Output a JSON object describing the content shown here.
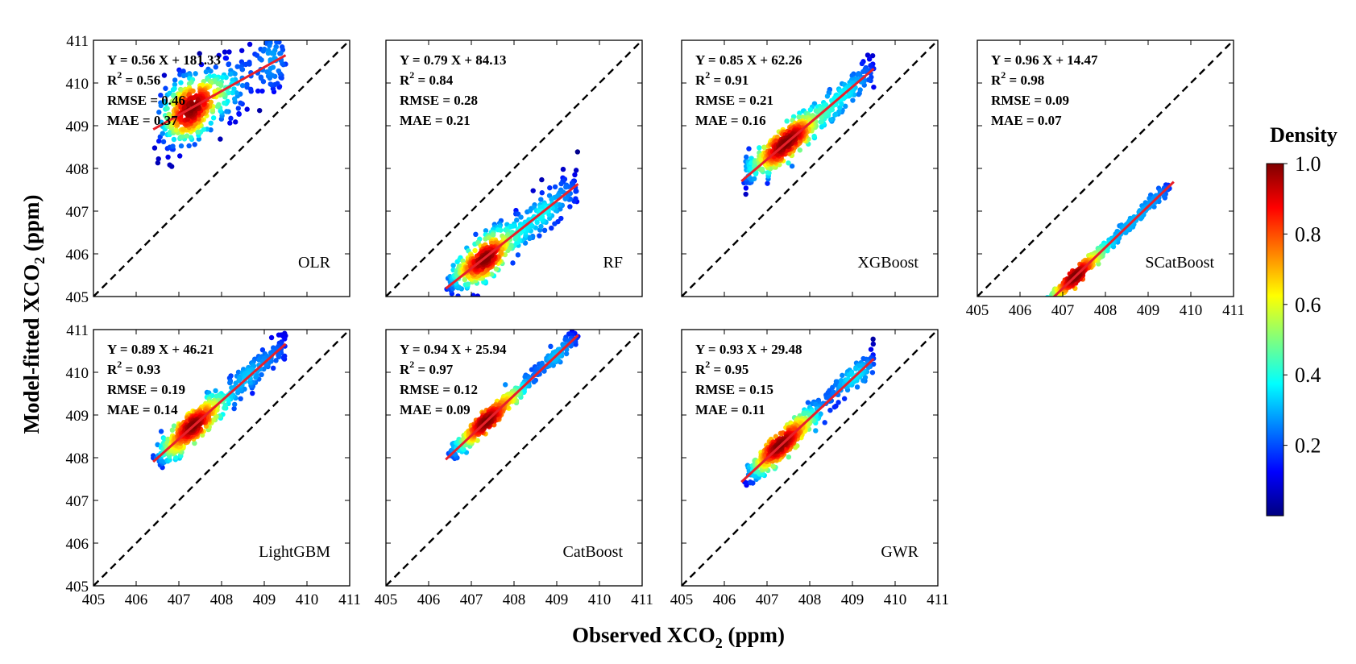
{
  "figure": {
    "xlabel": {
      "pre": "Observed XCO",
      "sub": "2",
      "post": " (ppm)"
    },
    "ylabel": {
      "pre": "Model-fitted XCO",
      "sub": "2",
      "post": " (ppm)"
    }
  },
  "colorbar": {
    "title": "Density",
    "ticks": [
      "1.0",
      "0.8",
      "0.6",
      "0.4",
      "0.2"
    ],
    "tick_values": [
      1.0,
      0.8,
      0.6,
      0.4,
      0.2
    ],
    "range": [
      0.0,
      1.0
    ],
    "colormap": [
      "#00007f",
      "#0000ff",
      "#007fff",
      "#00ffff",
      "#7fff7f",
      "#ffff00",
      "#ff7f00",
      "#ff0000",
      "#7f0000"
    ]
  },
  "chart_data": [
    {
      "type": "scatter",
      "model": "OLR",
      "equation": "Y = 0.56 X + 181.33",
      "r2_label": "R",
      "r2_sup": "2",
      "r2_value": " = 0.56",
      "rmse": "RMSE = 0.46",
      "mae": "MAE = 0.37",
      "slope": 0.56,
      "intercept": 181.33,
      "fit_x": [
        406.4,
        409.5
      ],
      "spread": 0.42,
      "xlim": [
        405,
        411
      ],
      "ylim": [
        405,
        411
      ],
      "one_to_one": true,
      "fit_color": "#e8202a",
      "x_ticks": [],
      "y_ticks": [
        "405",
        "406",
        "407",
        "408",
        "409",
        "410",
        "411"
      ]
    },
    {
      "type": "scatter",
      "model": "RF",
      "equation": "Y = 0.79 X + 84.13",
      "r2_label": "R",
      "r2_sup": "2",
      "r2_value": " = 0.84",
      "rmse": "RMSE = 0.28",
      "mae": "MAE = 0.21",
      "slope": 0.79,
      "intercept": 84.13,
      "fit_x": [
        406.4,
        409.5
      ],
      "spread": 0.26,
      "xlim": [
        405,
        411
      ],
      "ylim": [
        405,
        411
      ],
      "one_to_one": true,
      "fit_color": "#e8202a",
      "x_ticks": [],
      "y_ticks": []
    },
    {
      "type": "scatter",
      "model": "XGBoost",
      "equation": "Y = 0.85 X + 62.26",
      "r2_label": "R",
      "r2_sup": "2",
      "r2_value": " = 0.91",
      "rmse": "RMSE = 0.21",
      "mae": "MAE = 0.16",
      "slope": 0.85,
      "intercept": 62.26,
      "fit_x": [
        406.4,
        409.5
      ],
      "spread": 0.2,
      "xlim": [
        405,
        411
      ],
      "ylim": [
        405,
        411
      ],
      "one_to_one": true,
      "fit_color": "#e8202a",
      "x_ticks": [],
      "y_ticks": []
    },
    {
      "type": "scatter",
      "model": "SCatBoost",
      "equation": "Y = 0.96 X + 14.47",
      "r2_label": "R",
      "r2_sup": "2",
      "r2_value": " = 0.98",
      "rmse": "RMSE = 0.09",
      "mae": "MAE = 0.07",
      "slope": 0.96,
      "intercept": 14.47,
      "fit_x": [
        406.4,
        409.6
      ],
      "spread": 0.08,
      "xlim": [
        405,
        411
      ],
      "ylim": [
        405,
        411
      ],
      "one_to_one": true,
      "fit_color": "#e8202a",
      "x_ticks": [
        "405",
        "406",
        "407",
        "408",
        "409",
        "410",
        "411"
      ],
      "y_ticks": []
    },
    {
      "type": "scatter",
      "model": "LightGBM",
      "equation": "Y = 0.89 X + 46.21",
      "r2_label": "R",
      "r2_sup": "2",
      "r2_value": " = 0.93",
      "rmse": "RMSE = 0.19",
      "mae": "MAE = 0.14",
      "slope": 0.89,
      "intercept": 46.21,
      "fit_x": [
        406.4,
        409.5
      ],
      "spread": 0.18,
      "xlim": [
        405,
        411
      ],
      "ylim": [
        405,
        411
      ],
      "one_to_one": true,
      "fit_color": "#e8202a",
      "x_ticks": [
        "405",
        "406",
        "407",
        "408",
        "409",
        "410",
        "411"
      ],
      "y_ticks": [
        "405",
        "406",
        "407",
        "408",
        "409",
        "410",
        "411"
      ]
    },
    {
      "type": "scatter",
      "model": "CatBoost",
      "equation": "Y = 0.94 X + 25.94",
      "r2_label": "R",
      "r2_sup": "2",
      "r2_value": " = 0.97",
      "rmse": "RMSE = 0.12",
      "mae": "MAE = 0.09",
      "slope": 0.94,
      "intercept": 25.94,
      "fit_x": [
        406.4,
        409.5
      ],
      "spread": 0.11,
      "xlim": [
        405,
        411
      ],
      "ylim": [
        405,
        411
      ],
      "one_to_one": true,
      "fit_color": "#e8202a",
      "x_ticks": [
        "405",
        "406",
        "407",
        "408",
        "409",
        "410",
        "411"
      ],
      "y_ticks": []
    },
    {
      "type": "scatter",
      "model": "GWR",
      "equation": "Y = 0.93 X + 29.48",
      "r2_label": "R",
      "r2_sup": "2",
      "r2_value": " = 0.95",
      "rmse": "RMSE = 0.15",
      "mae": "MAE = 0.11",
      "slope": 0.93,
      "intercept": 29.48,
      "fit_x": [
        406.4,
        409.5
      ],
      "spread": 0.15,
      "xlim": [
        405,
        411
      ],
      "ylim": [
        405,
        411
      ],
      "one_to_one": true,
      "fit_color": "#e8202a",
      "x_ticks": [
        "405",
        "406",
        "407",
        "408",
        "409",
        "410",
        "411"
      ],
      "y_ticks": []
    }
  ]
}
